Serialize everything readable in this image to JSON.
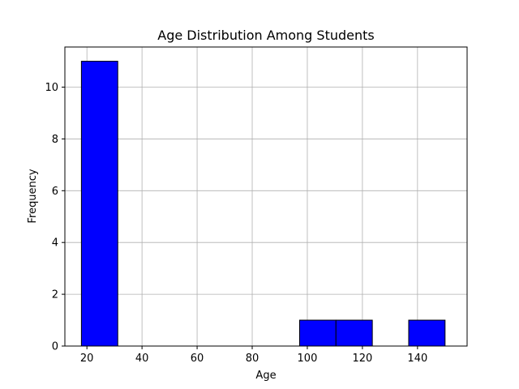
{
  "chart_data": {
    "type": "bar",
    "subtype": "histogram",
    "title": "Age Distribution Among Students",
    "xlabel": "Age",
    "ylabel": "Frequency",
    "xlim": [
      12.0,
      158.0
    ],
    "ylim": [
      0,
      11.55
    ],
    "x_ticks": [
      20,
      40,
      60,
      80,
      100,
      120,
      140
    ],
    "y_ticks": [
      0,
      2,
      4,
      6,
      8,
      10
    ],
    "grid": true,
    "bar_color": "#0000ff",
    "edge_color": "#000000",
    "bins": [
      {
        "x0": 18.0,
        "x1": 31.2,
        "count": 11
      },
      {
        "x0": 31.2,
        "x1": 44.4,
        "count": 0
      },
      {
        "x0": 44.4,
        "x1": 57.6,
        "count": 0
      },
      {
        "x0": 57.6,
        "x1": 70.8,
        "count": 0
      },
      {
        "x0": 70.8,
        "x1": 84.0,
        "count": 0
      },
      {
        "x0": 84.0,
        "x1": 97.2,
        "count": 0
      },
      {
        "x0": 97.2,
        "x1": 110.4,
        "count": 1
      },
      {
        "x0": 110.4,
        "x1": 123.6,
        "count": 1
      },
      {
        "x0": 123.6,
        "x1": 136.8,
        "count": 0
      },
      {
        "x0": 136.8,
        "x1": 150.0,
        "count": 1
      }
    ]
  }
}
